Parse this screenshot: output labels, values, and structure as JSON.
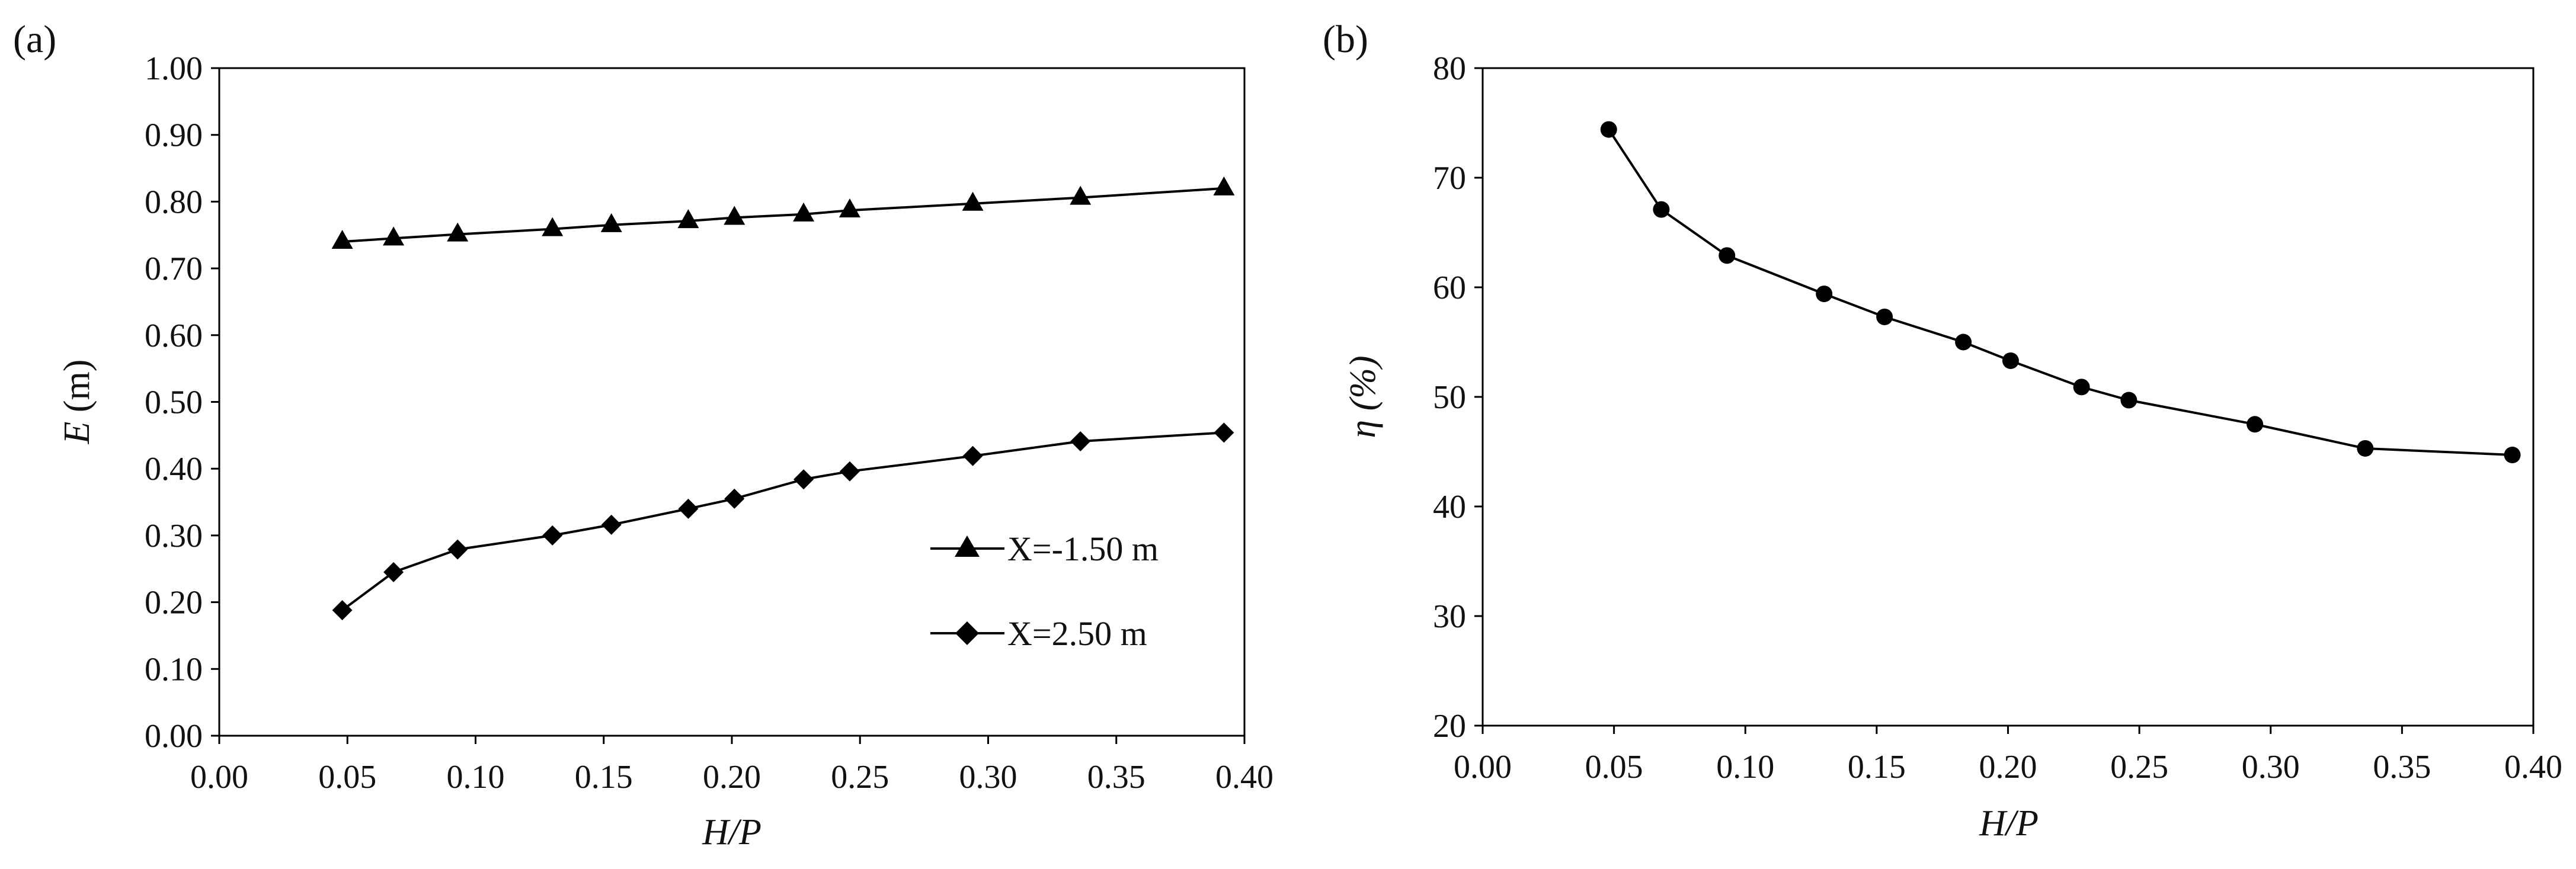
{
  "chart_data": [
    {
      "panel": "(a)",
      "type": "line",
      "title": "",
      "xlabel": "H/P",
      "ylabel": "E (m)",
      "xlim": [
        0.0,
        0.4
      ],
      "ylim": [
        0.0,
        1.0
      ],
      "xticks": [
        "0.00",
        "0.05",
        "0.10",
        "0.15",
        "0.20",
        "0.25",
        "0.30",
        "0.35",
        "0.40"
      ],
      "yticks": [
        "0.00",
        "0.10",
        "0.20",
        "0.30",
        "0.40",
        "0.50",
        "0.60",
        "0.70",
        "0.80",
        "0.90",
        "1.00"
      ],
      "grid": false,
      "legend_position": "bottom-right",
      "series": [
        {
          "name": "X=-1.50 m",
          "marker": "triangle",
          "x": [
            0.048,
            0.068,
            0.093,
            0.13,
            0.153,
            0.183,
            0.201,
            0.228,
            0.246,
            0.294,
            0.336,
            0.392
          ],
          "y": [
            0.74,
            0.745,
            0.751,
            0.759,
            0.765,
            0.771,
            0.776,
            0.781,
            0.787,
            0.797,
            0.806,
            0.82
          ]
        },
        {
          "name": "X=2.50 m",
          "marker": "diamond",
          "x": [
            0.048,
            0.068,
            0.093,
            0.13,
            0.153,
            0.183,
            0.201,
            0.228,
            0.246,
            0.294,
            0.336,
            0.392
          ],
          "y": [
            0.188,
            0.245,
            0.279,
            0.3,
            0.316,
            0.34,
            0.355,
            0.384,
            0.396,
            0.419,
            0.441,
            0.454
          ]
        }
      ]
    },
    {
      "panel": "(b)",
      "type": "line",
      "title": "",
      "xlabel": "H/P",
      "ylabel": "η (%)",
      "xlim": [
        0.0,
        0.4
      ],
      "ylim": [
        20,
        80
      ],
      "xticks": [
        "0.00",
        "0.05",
        "0.10",
        "0.15",
        "0.20",
        "0.25",
        "0.30",
        "0.35",
        "0.40"
      ],
      "yticks": [
        "20",
        "30",
        "40",
        "50",
        "60",
        "70",
        "80"
      ],
      "grid": false,
      "series": [
        {
          "name": "η",
          "marker": "circle",
          "x": [
            0.048,
            0.068,
            0.093,
            0.13,
            0.153,
            0.183,
            0.201,
            0.228,
            0.246,
            0.294,
            0.336,
            0.392
          ],
          "y": [
            74.4,
            67.1,
            62.9,
            59.4,
            57.3,
            55.0,
            53.3,
            50.9,
            49.7,
            47.5,
            45.3,
            44.7
          ]
        }
      ]
    }
  ]
}
